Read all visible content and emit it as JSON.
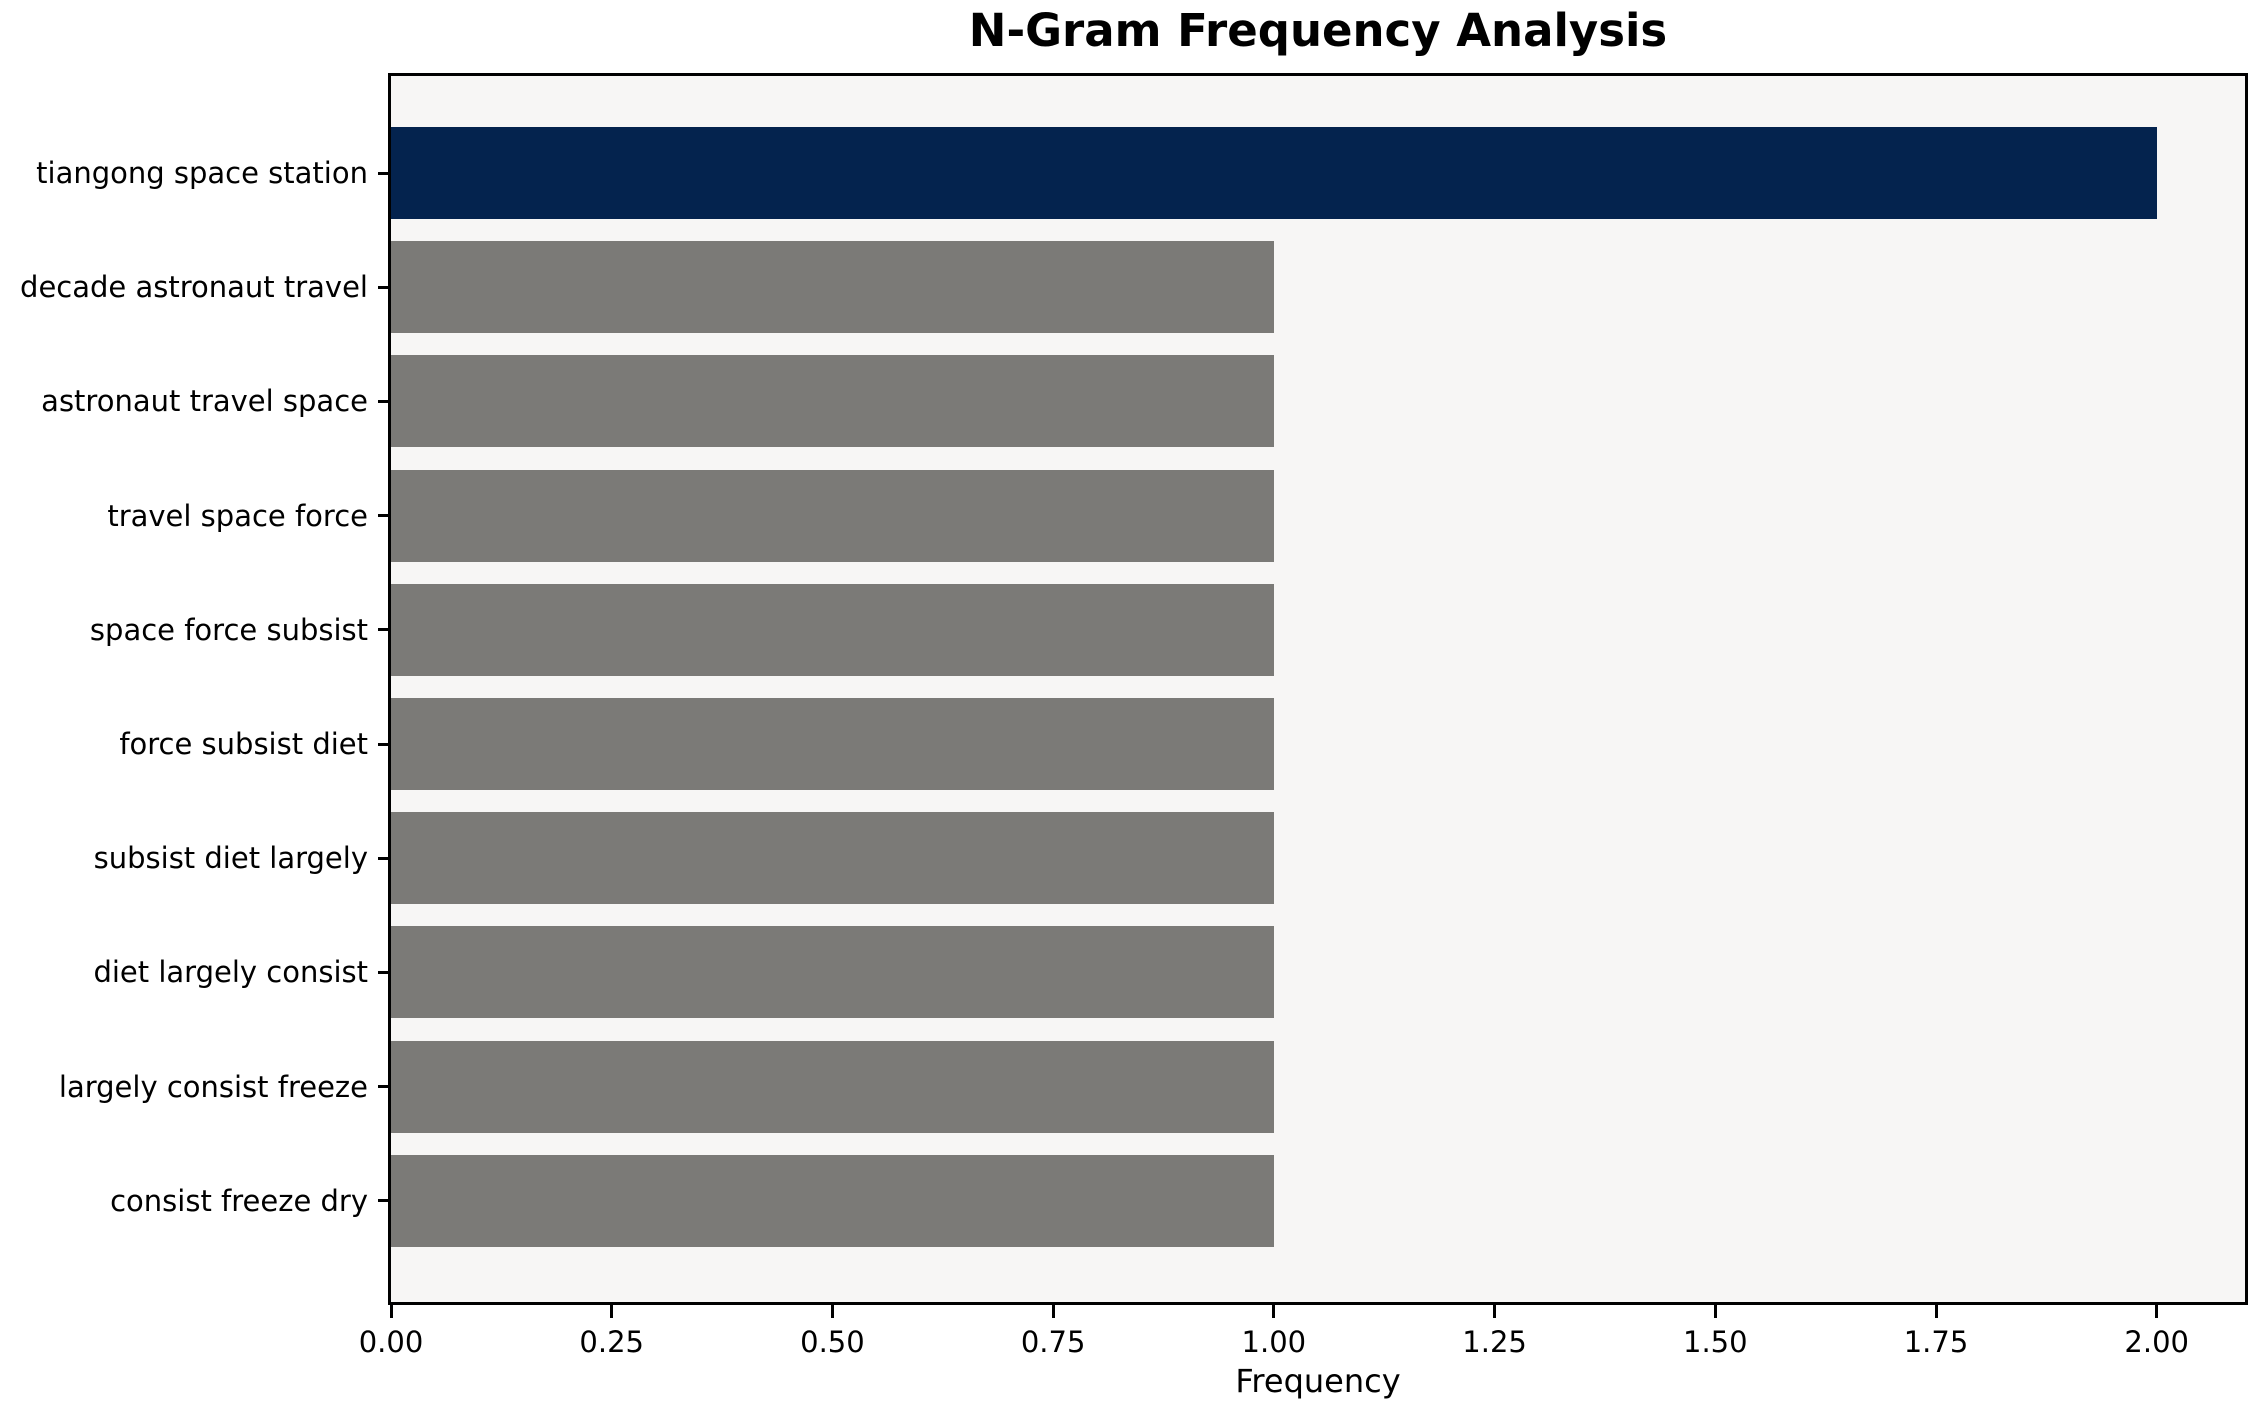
{
  "chart_data": {
    "type": "bar",
    "orientation": "horizontal",
    "title": "N-Gram Frequency Analysis",
    "xlabel": "Frequency",
    "ylabel": "",
    "categories": [
      "tiangong space station",
      "decade astronaut travel",
      "astronaut travel space",
      "travel space force",
      "space force subsist",
      "force subsist diet",
      "subsist diet largely",
      "diet largely consist",
      "largely consist freeze",
      "consist freeze dry"
    ],
    "values": [
      2,
      1,
      1,
      1,
      1,
      1,
      1,
      1,
      1,
      1
    ],
    "xlim": [
      0,
      2.1
    ],
    "xticks": [
      {
        "value": 0.0,
        "label": "0.00"
      },
      {
        "value": 0.25,
        "label": "0.25"
      },
      {
        "value": 0.5,
        "label": "0.50"
      },
      {
        "value": 0.75,
        "label": "0.75"
      },
      {
        "value": 1.0,
        "label": "1.00"
      },
      {
        "value": 1.25,
        "label": "1.25"
      },
      {
        "value": 1.5,
        "label": "1.50"
      },
      {
        "value": 1.75,
        "label": "1.75"
      },
      {
        "value": 2.0,
        "label": "2.00"
      }
    ],
    "grid": false,
    "legend": "none",
    "colors": {
      "bar_highlight": "#04234e",
      "bar_default": "#7b7a77",
      "plot_background": "#f7f6f5",
      "figure_background": "#ffffff",
      "spine": "#000000",
      "text": "#000000"
    }
  }
}
